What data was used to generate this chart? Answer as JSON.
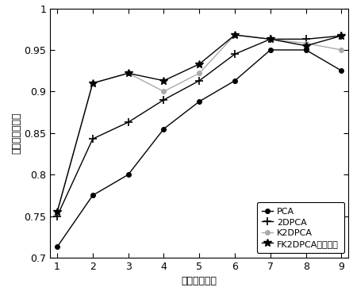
{
  "x": [
    1,
    2,
    3,
    4,
    5,
    6,
    7,
    8,
    9
  ],
  "PCA": [
    0.713,
    0.775,
    0.8,
    0.855,
    0.888,
    0.913,
    0.95,
    0.95,
    0.925
  ],
  "2DPCA": [
    0.75,
    0.843,
    0.863,
    0.89,
    0.913,
    0.945,
    0.963,
    0.963,
    0.967
  ],
  "K2DPCA": [
    0.755,
    0.91,
    0.922,
    0.9,
    0.922,
    0.968,
    0.963,
    0.958,
    0.95
  ],
  "FK2DPCA": [
    0.755,
    0.91,
    0.922,
    0.913,
    0.933,
    0.968,
    0.963,
    0.955,
    0.967
  ],
  "xlabel": "训练样本数目",
  "ylabel": "人脸准确识别率",
  "ylim": [
    0.7,
    1.0
  ],
  "xlim": [
    1,
    9
  ],
  "yticks": [
    0.7,
    0.75,
    0.8,
    0.85,
    0.9,
    0.95,
    1.0
  ],
  "ytick_labels": [
    "0.7",
    "0.75",
    "0.8",
    "0.85",
    "0.9",
    "0.95",
    "1"
  ],
  "legend_labels": [
    "PCA",
    "2DPCA",
    "K2DPCA",
    "FK2DPCA本文方法"
  ]
}
